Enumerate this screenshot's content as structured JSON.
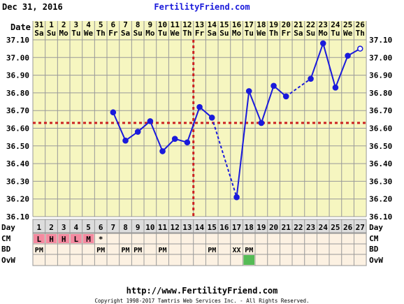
{
  "header": {
    "date_label": "Dec 31, 2016",
    "site_name": "FertilityFriend.com"
  },
  "footer": {
    "url": "http://www.FertilityFriend.com",
    "copyright": "Copyright 1998-2017 Tamtris Web Services Inc. - All Rights Reserved."
  },
  "row_labels": {
    "date": "Date",
    "day": "Day",
    "cm": "CM",
    "bd": "BD",
    "ovw": "OvW"
  },
  "colors": {
    "panel_bg": "#f6f6c0",
    "grid": "#999999",
    "series": "#1a1adb",
    "coverline": "#cc2222",
    "title_link": "#1a1adb",
    "cm_fill": "#f48aa0",
    "ovw_positive": "#55bb55",
    "row_bg": "#fcf1e2"
  },
  "chart_data": {
    "type": "line",
    "title": "",
    "x": [
      "31",
      "1",
      "2",
      "3",
      "4",
      "5",
      "6",
      "7",
      "8",
      "9",
      "10",
      "11",
      "12",
      "13",
      "14",
      "15",
      "16",
      "17",
      "18",
      "19",
      "20",
      "21",
      "22",
      "23",
      "24",
      "25",
      "26"
    ],
    "weekdays": [
      "Sa",
      "Su",
      "Mo",
      "Tu",
      "We",
      "Th",
      "Fr",
      "Sa",
      "Su",
      "Mo",
      "Tu",
      "We",
      "Th",
      "Fr",
      "Sa",
      "Su",
      "Mo",
      "Tu",
      "We",
      "Th",
      "Fr",
      "Sa",
      "Su",
      "Mo",
      "Tu",
      "We",
      "Th"
    ],
    "cycle_days": [
      "1",
      "2",
      "3",
      "4",
      "5",
      "6",
      "7",
      "8",
      "9",
      "10",
      "11",
      "12",
      "13",
      "14",
      "15",
      "16",
      "17",
      "18",
      "19",
      "20",
      "21",
      "22",
      "23",
      "24",
      "25",
      "26",
      "27"
    ],
    "ylabel": "",
    "ylim": [
      36.1,
      37.1
    ],
    "yticks": [
      "36.10",
      "36.20",
      "36.30",
      "36.40",
      "36.50",
      "36.60",
      "36.70",
      "36.80",
      "36.90",
      "37.00",
      "37.10"
    ],
    "series": [
      {
        "values": [
          null,
          null,
          null,
          null,
          null,
          null,
          36.69,
          36.53,
          36.58,
          36.64,
          36.47,
          36.54,
          36.52,
          36.72,
          36.66,
          null,
          36.21,
          36.81,
          36.63,
          36.84,
          36.78,
          null,
          36.88,
          37.08,
          36.83,
          37.01,
          37.05
        ]
      }
    ],
    "dashed_segments": [
      [
        14,
        16
      ],
      [
        20,
        22
      ]
    ],
    "open_points": [
      26
    ],
    "coverline": 36.63,
    "ovulation_day_index": 12,
    "cm": [
      "L",
      "H",
      "H",
      "L",
      "M",
      "*",
      "",
      "",
      "",
      "",
      "",
      "",
      "",
      "",
      "",
      "",
      "",
      "",
      "",
      "",
      "",
      "",
      "",
      "",
      "",
      "",
      ""
    ],
    "bd": [
      "PM",
      "",
      "",
      "",
      "",
      "PM",
      "",
      "PM",
      "PM",
      "",
      "PM",
      "",
      "",
      "",
      "PM",
      "",
      "XX",
      "PM",
      "",
      "",
      "",
      "",
      "",
      "",
      "",
      "",
      ""
    ],
    "ovw_positive": [
      17
    ],
    "grid": true,
    "legend": "none"
  }
}
